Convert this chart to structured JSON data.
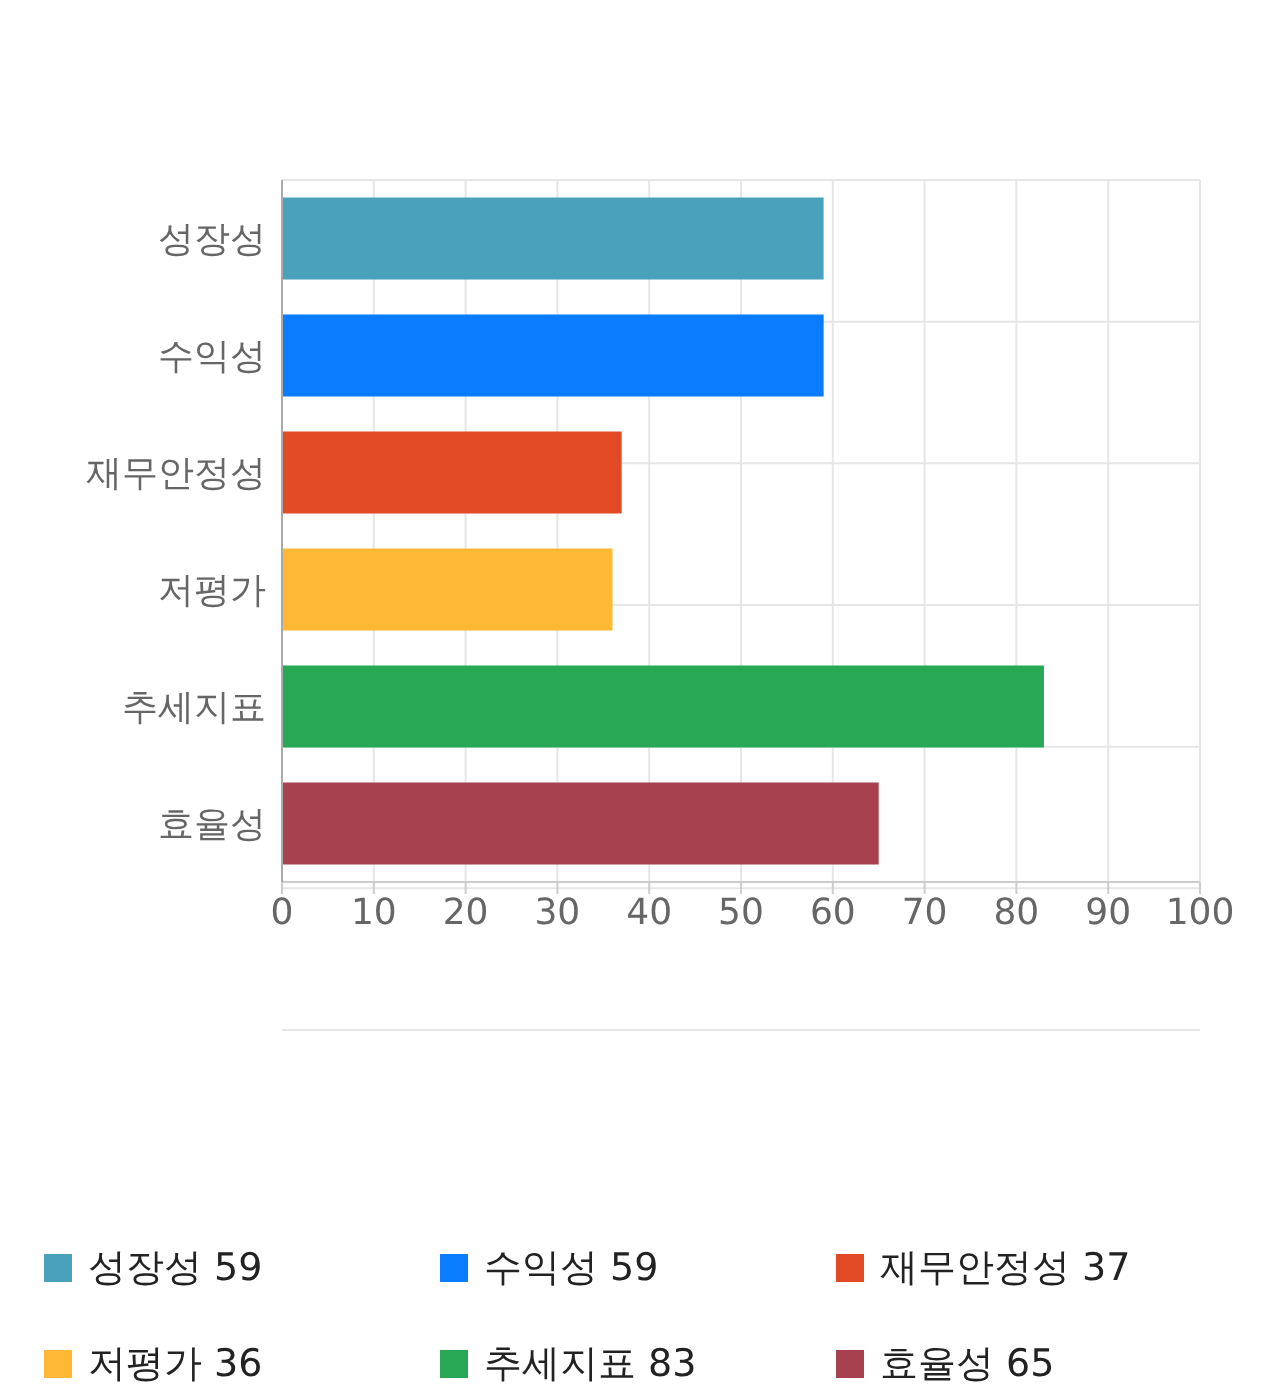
{
  "chart_data": {
    "type": "bar",
    "orientation": "horizontal",
    "stacked": true,
    "categories": [
      "성장성",
      "수익성",
      "재무안정성",
      "저평가",
      "추세지표",
      "효율성"
    ],
    "series": [
      {
        "name": "성장성 59",
        "color": "#4aa1bb",
        "values": [
          59,
          null,
          null,
          null,
          null,
          null
        ]
      },
      {
        "name": "수익성 59",
        "color": "#0a7cff",
        "values": [
          null,
          59,
          null,
          null,
          null,
          null
        ]
      },
      {
        "name": "재무안정성 37",
        "color": "#e24a25",
        "values": [
          null,
          null,
          37,
          null,
          null,
          null
        ]
      },
      {
        "name": "저평가 36",
        "color": "#ffb833",
        "values": [
          null,
          null,
          null,
          36,
          null,
          null
        ]
      },
      {
        "name": "추세지표 83",
        "color": "#28a755",
        "values": [
          null,
          null,
          null,
          null,
          83,
          null
        ]
      },
      {
        "name": "효율성 65",
        "color": "#a8414f",
        "values": [
          null,
          null,
          null,
          null,
          null,
          65
        ]
      }
    ],
    "xlim": [
      0,
      100
    ],
    "xticks": [
      0,
      10,
      20,
      30,
      40,
      50,
      60,
      70,
      80,
      90,
      100
    ],
    "grid": true,
    "legend": "bottom"
  }
}
